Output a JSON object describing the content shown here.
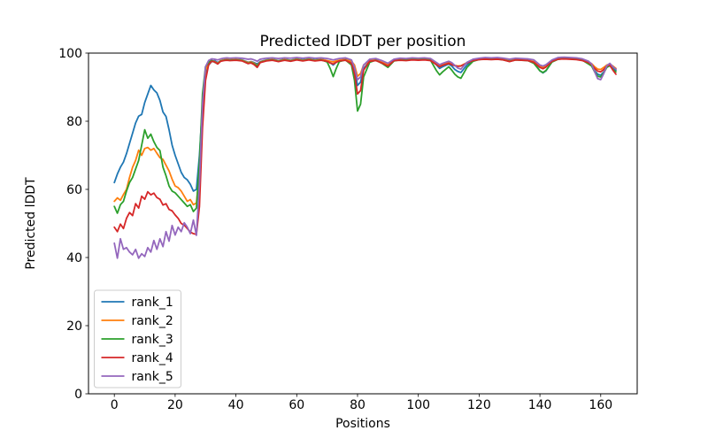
{
  "figure": {
    "background": "#ffffff"
  },
  "chart_data": {
    "type": "line",
    "title": "Predicted lDDT per position",
    "xlabel": "Positions",
    "ylabel": "Predicted lDDT",
    "xlim": [
      -8.5,
      172
    ],
    "ylim": [
      0,
      100
    ],
    "xticks": [
      0,
      20,
      40,
      60,
      80,
      100,
      120,
      140,
      160
    ],
    "yticks": [
      0,
      20,
      40,
      60,
      80,
      100
    ],
    "grid": false,
    "legend_position": "lower left",
    "x": [
      0,
      1,
      2,
      3,
      4,
      5,
      6,
      7,
      8,
      9,
      10,
      11,
      12,
      13,
      14,
      15,
      16,
      17,
      18,
      19,
      20,
      21,
      22,
      23,
      24,
      25,
      26,
      27,
      28,
      29,
      30,
      31,
      32,
      33,
      34,
      35,
      36,
      37,
      38,
      40,
      42,
      44,
      45,
      46,
      47,
      48,
      50,
      52,
      54,
      56,
      58,
      60,
      62,
      64,
      66,
      68,
      70,
      71,
      72,
      73,
      74,
      76,
      78,
      79,
      80,
      81,
      82,
      84,
      86,
      88,
      90,
      92,
      94,
      96,
      98,
      100,
      102,
      104,
      106,
      107,
      108,
      110,
      111,
      112,
      113,
      114,
      116,
      118,
      120,
      122,
      124,
      126,
      128,
      130,
      132,
      134,
      136,
      138,
      140,
      141,
      142,
      144,
      146,
      148,
      150,
      152,
      154,
      156,
      157,
      158,
      159,
      160,
      161,
      162,
      163,
      164,
      165
    ],
    "series": [
      {
        "name": "rank_1",
        "color": "#1f77b4",
        "values": [
          62,
          64.5,
          66.5,
          68,
          70.5,
          73.5,
          76.5,
          79.5,
          81.5,
          82,
          85.5,
          88,
          90.5,
          89.2,
          88.3,
          86.1,
          82.7,
          81.4,
          77.5,
          73,
          70,
          67.5,
          65,
          63.5,
          62.8,
          61.5,
          59.5,
          60,
          70,
          85,
          94,
          96.5,
          97.5,
          97.8,
          97.2,
          97.8,
          98,
          98.2,
          98,
          98.2,
          98,
          97.3,
          97.5,
          97.2,
          96.8,
          97.5,
          98,
          98.2,
          97.8,
          98.2,
          97.9,
          98.3,
          98,
          98.3,
          98,
          98.2,
          97.8,
          97.2,
          96.5,
          97.3,
          97.8,
          98.2,
          97.5,
          95.5,
          90.5,
          91.5,
          95.5,
          97.5,
          98,
          97.2,
          96.3,
          97.8,
          98.2,
          98.1,
          98.3,
          98.2,
          98.3,
          98.1,
          96.5,
          95.5,
          96,
          96.8,
          96.2,
          95.2,
          94.6,
          94.3,
          96.5,
          97.8,
          98.2,
          98.4,
          98.3,
          98.4,
          98.2,
          97.8,
          98.2,
          98.1,
          98,
          97.3,
          94.8,
          94.2,
          94.8,
          97.5,
          98.3,
          98.5,
          98.4,
          98.3,
          98,
          97,
          96.3,
          94.8,
          93.8,
          93.5,
          94.5,
          96,
          96.5,
          95.8,
          95
        ]
      },
      {
        "name": "rank_2",
        "color": "#ff7f0e",
        "values": [
          56.5,
          57.5,
          56.8,
          58.5,
          60,
          63.5,
          66.5,
          68.5,
          71.5,
          70,
          72,
          72.3,
          71.5,
          72,
          70.6,
          69.3,
          68.8,
          67.1,
          65.4,
          63,
          61,
          60.5,
          59.5,
          58,
          56.5,
          57,
          55.5,
          56,
          65,
          85,
          95,
          97,
          97.8,
          97.5,
          97,
          97.8,
          98,
          98.1,
          98,
          98.1,
          97.9,
          97.2,
          97.4,
          97,
          96.3,
          97.4,
          97.9,
          98.1,
          97.7,
          98.1,
          97.8,
          98.2,
          97.9,
          98.2,
          97.9,
          98.1,
          97.8,
          97.6,
          97.4,
          97.7,
          97.9,
          98.1,
          97.6,
          96.5,
          93.2,
          94,
          96.5,
          97.8,
          98,
          97.3,
          96.6,
          97.9,
          98.1,
          98,
          98.2,
          98.1,
          98.2,
          98,
          96.8,
          96.2,
          96.6,
          97.2,
          96.8,
          96.4,
          96.2,
          96.3,
          97.2,
          97.9,
          98.2,
          98.3,
          98.2,
          98.3,
          98.1,
          97.7,
          98.1,
          98,
          97.9,
          97.5,
          96.2,
          95.8,
          96.2,
          97.7,
          98.3,
          98.4,
          98.3,
          98.2,
          98,
          97.4,
          96.9,
          96,
          95.3,
          95.2,
          95.8,
          96.5,
          96.8,
          96.2,
          95.5
        ]
      },
      {
        "name": "rank_3",
        "color": "#2ca02c",
        "values": [
          55,
          53,
          55.5,
          56.5,
          59.5,
          62,
          63.5,
          66,
          68.5,
          73,
          77.5,
          75,
          76.2,
          74,
          72.3,
          71.4,
          66.5,
          64,
          61,
          59.5,
          59,
          58,
          57,
          56,
          55,
          55.5,
          53.5,
          54.5,
          68,
          88,
          96,
          97.3,
          97.9,
          97.3,
          96.9,
          97.7,
          97.9,
          98,
          97.9,
          98,
          97.8,
          97,
          97.2,
          96.8,
          96.2,
          97.3,
          97.8,
          98,
          97.6,
          98,
          97.7,
          98.1,
          97.8,
          98.1,
          97.8,
          98,
          97.4,
          95.5,
          93.1,
          95.5,
          97.5,
          98,
          96.5,
          92,
          83,
          85,
          93,
          97.3,
          97.9,
          97,
          95.8,
          97.7,
          98,
          97.9,
          98.1,
          98,
          98.1,
          97.9,
          94.8,
          93.6,
          94.5,
          96,
          95,
          93.8,
          93,
          92.6,
          95.8,
          97.6,
          98.1,
          98.3,
          98.2,
          98.3,
          98,
          97.6,
          98,
          97.9,
          97.8,
          97,
          94.8,
          94.3,
          94.9,
          97.4,
          98.2,
          98.4,
          98.3,
          98.2,
          97.9,
          96.8,
          96.2,
          94.5,
          93.2,
          93,
          94.2,
          95.8,
          96.3,
          95.2,
          94.5
        ]
      },
      {
        "name": "rank_4",
        "color": "#d62728",
        "values": [
          48.9,
          47.6,
          49.8,
          48.5,
          51.5,
          53.2,
          52.3,
          55.8,
          54.5,
          58,
          57.1,
          59.3,
          58.4,
          58.9,
          57.6,
          57.1,
          55.4,
          55.8,
          54.1,
          53.7,
          52.5,
          51.5,
          50,
          49.5,
          48.5,
          47.5,
          47,
          46.8,
          55,
          78,
          92,
          96.5,
          97.6,
          97.4,
          96.8,
          97.6,
          97.8,
          97.9,
          97.8,
          97.9,
          97.7,
          96.9,
          97.1,
          96.6,
          95.8,
          97.2,
          97.7,
          97.9,
          97.5,
          97.9,
          97.6,
          98,
          97.7,
          98,
          97.7,
          97.9,
          97.6,
          97.1,
          96.8,
          97.3,
          97.7,
          97.9,
          97,
          94,
          88,
          89,
          95,
          97.6,
          97.8,
          97.1,
          96.2,
          97.8,
          97.9,
          97.8,
          98,
          97.9,
          98,
          97.8,
          96.6,
          96,
          96.4,
          97,
          96.6,
          96.3,
          96.1,
          96.2,
          97.1,
          97.8,
          98.1,
          98.2,
          98.1,
          98.2,
          98,
          97.5,
          98,
          97.9,
          97.8,
          97.3,
          95.8,
          95.4,
          95.9,
          97.6,
          98.2,
          98.3,
          98.2,
          98.1,
          97.8,
          97.2,
          96.6,
          95.5,
          94.7,
          94.5,
          95.2,
          96.2,
          96.5,
          95,
          93.8
        ]
      },
      {
        "name": "rank_5",
        "color": "#9467bd",
        "values": [
          44.2,
          39.8,
          45.5,
          42.4,
          42.9,
          41.6,
          40.8,
          42.4,
          39.8,
          41.1,
          40.3,
          42.9,
          41.6,
          45,
          42.4,
          45.5,
          43.2,
          47.6,
          44.8,
          49.4,
          46.6,
          48.9,
          47.6,
          50.2,
          48.9,
          47,
          51,
          46.5,
          62,
          85,
          96,
          97.8,
          98.3,
          98.2,
          98,
          98.3,
          98.5,
          98.6,
          98.5,
          98.6,
          98.5,
          98.2,
          98.3,
          98,
          97.6,
          98.2,
          98.5,
          98.6,
          98.4,
          98.6,
          98.5,
          98.7,
          98.5,
          98.7,
          98.5,
          98.6,
          98.4,
          98.2,
          98,
          98.2,
          98.4,
          98.6,
          98,
          95.8,
          92.2,
          93,
          96.5,
          98.2,
          98.4,
          97.8,
          97,
          98.2,
          98.5,
          98.4,
          98.6,
          98.5,
          98.6,
          98.4,
          97.2,
          96.6,
          97,
          97.6,
          97.2,
          96.4,
          95.6,
          95.3,
          97.3,
          98.2,
          98.5,
          98.7,
          98.6,
          98.7,
          98.5,
          98.2,
          98.5,
          98.4,
          98.3,
          98,
          96.5,
          96.2,
          96.6,
          98,
          98.7,
          98.8,
          98.7,
          98.6,
          98.3,
          97.6,
          96.8,
          94.5,
          92.5,
          92.2,
          94,
          96.3,
          97,
          96,
          95.3
        ]
      }
    ]
  }
}
